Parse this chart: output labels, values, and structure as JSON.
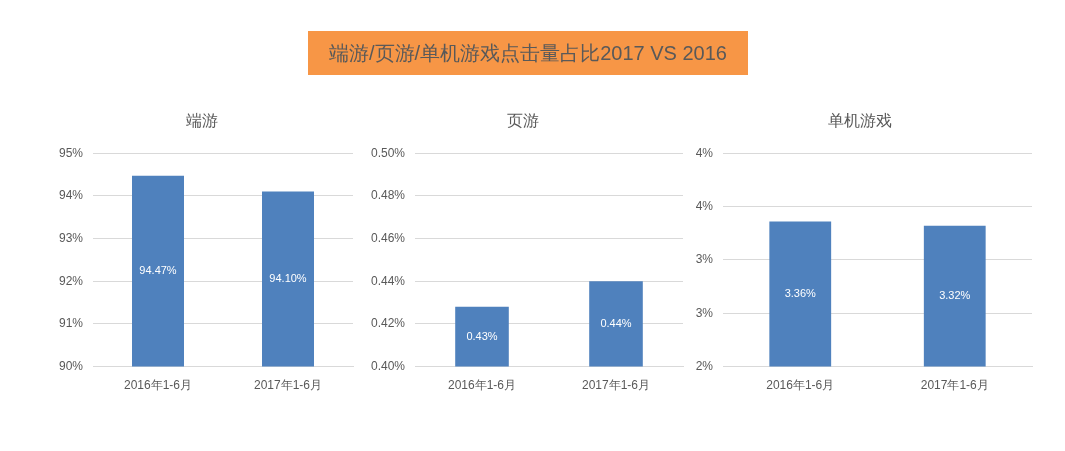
{
  "chart_data": [
    {
      "type": "other",
      "title": "端游/页游/单机游戏点击量占比2017 VS 2016"
    },
    {
      "type": "bar",
      "title": "端游",
      "categories": [
        "2016年1-6月",
        "2017年1-6月"
      ],
      "values": [
        94.47,
        94.1
      ],
      "value_labels": [
        "94.47%",
        "94.10%"
      ],
      "color": "#4f81bd",
      "ylim": [
        90,
        95
      ],
      "yticks": [
        {
          "value": 90,
          "label": "90%"
        },
        {
          "value": 91,
          "label": "91%"
        },
        {
          "value": 92,
          "label": "92%"
        },
        {
          "value": 93,
          "label": "93%"
        },
        {
          "value": 94,
          "label": "94%"
        },
        {
          "value": 95,
          "label": "95%"
        }
      ],
      "grid": "y"
    },
    {
      "type": "bar",
      "title": "页游",
      "categories": [
        "2016年1-6月",
        "2017年1-6月"
      ],
      "values": [
        0.428,
        0.44
      ],
      "value_labels": [
        "0.43%",
        "0.44%"
      ],
      "color": "#4f81bd",
      "ylim": [
        0.4,
        0.5
      ],
      "yticks": [
        {
          "value": 0.4,
          "label": "0.40%"
        },
        {
          "value": 0.42,
          "label": "0.42%"
        },
        {
          "value": 0.44,
          "label": "0.44%"
        },
        {
          "value": 0.46,
          "label": "0.46%"
        },
        {
          "value": 0.48,
          "label": "0.48%"
        },
        {
          "value": 0.5,
          "label": "0.50%"
        }
      ],
      "grid": "y"
    },
    {
      "type": "bar",
      "title": "单机游戏",
      "categories": [
        "2016年1-6月",
        "2017年1-6月"
      ],
      "values": [
        3.36,
        3.32
      ],
      "value_labels": [
        "3.36%",
        "3.32%"
      ],
      "color": "#4f81bd",
      "ylim": [
        2,
        4
      ],
      "yticks": [
        {
          "value": 2,
          "label": "2%"
        },
        {
          "value": 2.5,
          "label": "3%"
        },
        {
          "value": 3,
          "label": "3%"
        },
        {
          "value": 3.5,
          "label": "4%"
        },
        {
          "value": 4,
          "label": "4%"
        }
      ],
      "grid": "y"
    }
  ]
}
